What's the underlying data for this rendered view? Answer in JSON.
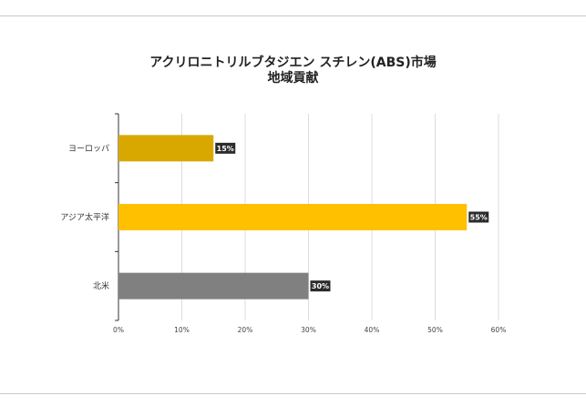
{
  "chart_data": {
    "type": "bar",
    "orientation": "horizontal",
    "title": "アクリロニトリルブタジエン スチレン(ABS)市場",
    "subtitle": "地域貢献",
    "categories": [
      "ヨーロッパ",
      "アジア太平洋",
      "北米"
    ],
    "values": [
      15,
      55,
      30
    ],
    "data_labels": [
      "15%",
      "55%",
      "30%"
    ],
    "bar_colors": [
      "#d9a800",
      "#ffc000",
      "#808080"
    ],
    "xlim": [
      0,
      60
    ],
    "x_ticks": [
      "0%",
      "10%",
      "20%",
      "30%",
      "40%",
      "50%",
      "60%"
    ],
    "grid": true,
    "legend": "none"
  }
}
